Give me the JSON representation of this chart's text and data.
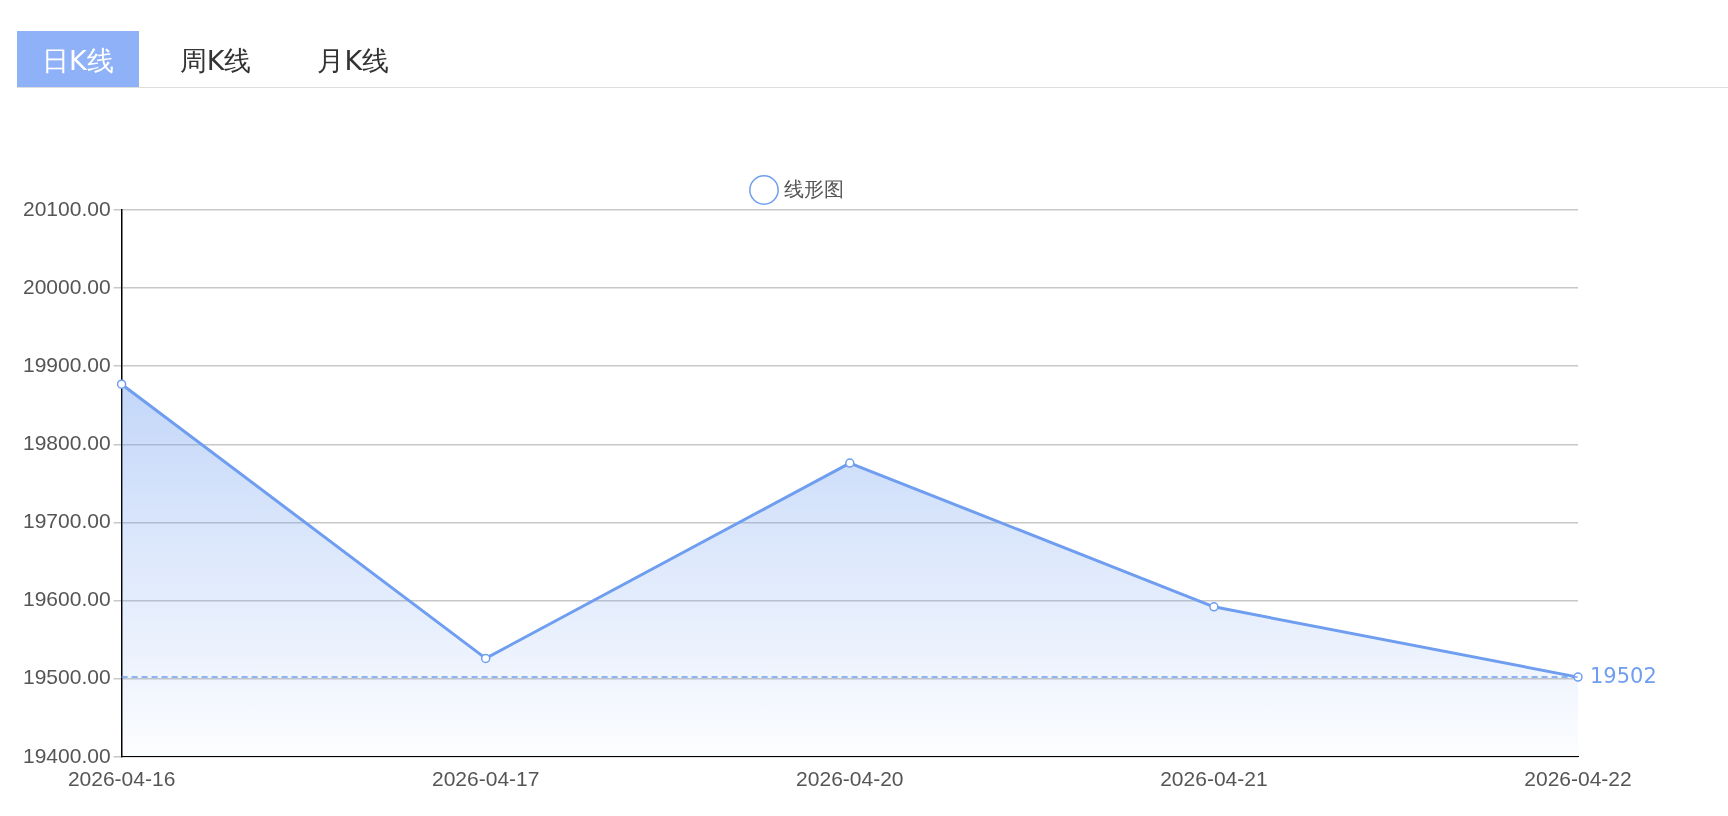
{
  "chart_data": {
    "type": "area",
    "annotations": [
      "日K线",
      "周K线",
      "月K线"
    ],
    "categories": [
      "2026-04-16",
      "2026-04-17",
      "2026-04-20",
      "2026-04-21",
      "2026-04-22"
    ],
    "series": [
      {
        "name": "线形图",
        "color": "#6f9ef0",
        "values": [
          19877,
          19526,
          19776,
          19592,
          19502
        ]
      }
    ],
    "ylim": [
      19400,
      20100
    ],
    "yticks": [
      {
        "value": 19400,
        "label": "19400.00"
      },
      {
        "value": 19500,
        "label": "19500.00"
      },
      {
        "value": 19600,
        "label": "19600.00"
      },
      {
        "value": 19700,
        "label": "19700.00"
      },
      {
        "value": 19800,
        "label": "19800.00"
      },
      {
        "value": 19900,
        "label": "19900.00"
      },
      {
        "value": 20000,
        "label": "20000.00"
      },
      {
        "value": 20100,
        "label": "20100.00"
      }
    ],
    "ref_lines": [
      {
        "axis": "y",
        "value": 19502,
        "label": "19502",
        "color": "#6f9ef0",
        "line_style": "dashed"
      }
    ],
    "grid": "y",
    "legend": "top",
    "marker": "circle",
    "line_style": "solid"
  }
}
